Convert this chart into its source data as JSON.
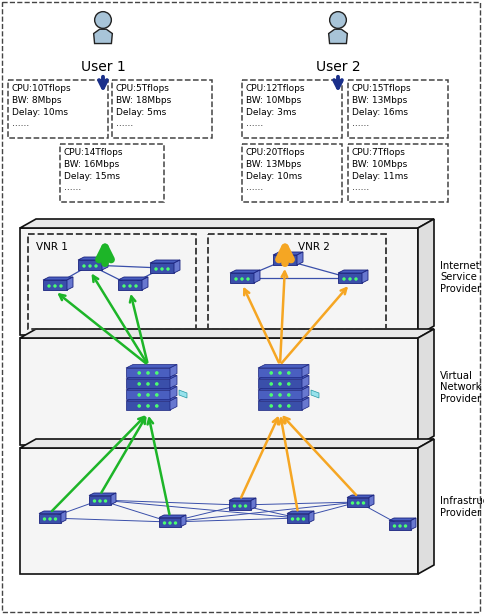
{
  "user1_label": "User 1",
  "user2_label": "User 2",
  "vnr1_label": "VNR 1",
  "vnr2_label": "VNR 2",
  "isp_label": "Internet\nService\nProvider",
  "vnp_label": "Virtual\nNetwork\nProvider",
  "infra_label": "Infrastructure\nProvider",
  "boxes_user1_row1": [
    "CPU:10Tflops\nBW: 8Mbps\nDelay: 10ms\n......",
    "CPU:5Tflops\nBW: 18Mbps\nDelay: 5ms\n......"
  ],
  "boxes_user1_row2": [
    "CPU:14Tflops\nBW: 16Mbps\nDelay: 15ms\n......"
  ],
  "boxes_user2_row1": [
    "CPU:12Tflops\nBW: 10Mbps\nDelay: 3ms\n......",
    "CPU:15Tflops\nBW: 13Mbps\nDelay: 16ms\n......"
  ],
  "boxes_user2_row2": [
    "CPU:20Tflops\nBW: 13Mbps\nDelay: 10ms\n......",
    "CPU:7Tflops\nBW: 10Mbps\nDelay: 11ms\n......"
  ],
  "green_color": "#1db528",
  "orange_color": "#f5a623",
  "node_blue": "#3a4faa",
  "node_blue_dark": "#1a237e",
  "node_blue_mid": "#4a5fc0",
  "node_blue_light": "#6878d0",
  "cyan_accent": "#80deea",
  "arrow_blue": "#1a2f8a",
  "label_color": "#111111"
}
